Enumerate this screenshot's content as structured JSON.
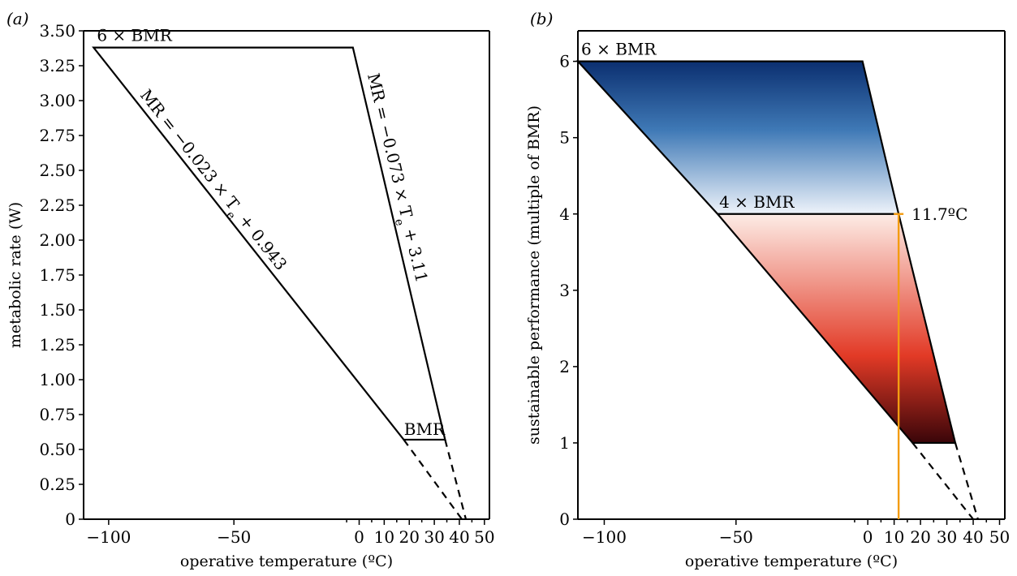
{
  "chart_data": [
    {
      "panel_label": "(a)",
      "type": "line",
      "xlabel": "operative temperature (ºC)",
      "ylabel": "metabolic rate (W)",
      "xlim": [
        -110,
        52
      ],
      "ylim": [
        0,
        3.5
      ],
      "xticks": [
        -100,
        -50,
        0,
        10,
        20,
        30,
        40,
        50
      ],
      "xtick_labels": [
        "−100",
        "−50",
        "0",
        "10",
        "20",
        "30",
        "40",
        "50"
      ],
      "xminor": [
        -5,
        5,
        15,
        25,
        35,
        45
      ],
      "yticks": [
        0,
        0.25,
        0.5,
        0.75,
        1.0,
        1.25,
        1.5,
        1.75,
        2.0,
        2.25,
        2.5,
        2.75,
        3.0,
        3.25,
        3.5
      ],
      "ytick_labels": [
        "0",
        "0.25",
        "0.50",
        "0.75",
        "1.00",
        "1.25",
        "1.50",
        "1.75",
        "2.00",
        "2.25",
        "2.50",
        "2.75",
        "3.00",
        "3.25",
        "3.50"
      ],
      "polygon": [
        {
          "x": -106,
          "y": 3.38
        },
        {
          "x": -2.5,
          "y": 3.38
        },
        {
          "x": 34.3,
          "y": 0.57
        },
        {
          "x": 17.8,
          "y": 0.57
        }
      ],
      "dashed_lines": [
        {
          "x1": 17.8,
          "y1": 0.57,
          "x2": 41,
          "y2": 0
        },
        {
          "x1": 34.3,
          "y1": 0.57,
          "x2": 42.6,
          "y2": 0
        }
      ],
      "annotations": {
        "upper_label": "6 × BMR",
        "lower_label": "BMR",
        "eq_left": "MR = −0.023 × T",
        "eq_left_sub": "e",
        "eq_left_tail": " + 0.943",
        "eq_right": "MR = −0.073 × T",
        "eq_right_sub": "e",
        "eq_right_tail": " + 3.11"
      }
    },
    {
      "panel_label": "(b)",
      "type": "area",
      "xlabel": "operative temperature (ºC)",
      "ylabel": "sustainable performance (multiple of BMR)",
      "xlim": [
        -110,
        52
      ],
      "ylim": [
        0,
        6.4
      ],
      "xticks": [
        -100,
        -50,
        0,
        10,
        20,
        30,
        40,
        50
      ],
      "xtick_labels": [
        "−100",
        "−50",
        "0",
        "10",
        "20",
        "30",
        "40",
        "50"
      ],
      "xminor": [
        -5,
        5,
        15,
        25,
        35,
        45
      ],
      "yticks": [
        0,
        1,
        2,
        3,
        4,
        5,
        6
      ],
      "ytick_labels": [
        "0",
        "1",
        "2",
        "3",
        "4",
        "5",
        "6"
      ],
      "polygon": [
        {
          "x": -110,
          "y": 6
        },
        {
          "x": -2,
          "y": 6
        },
        {
          "x": 11.7,
          "y": 4
        },
        {
          "x": 33.2,
          "y": 1
        },
        {
          "x": 17,
          "y": 1
        },
        {
          "x": -57,
          "y": 4
        }
      ],
      "threshold_line": {
        "y": 4,
        "x_from": -57,
        "x_to": 11.7
      },
      "vertical_marker": {
        "x": 11.7,
        "y_from": 0,
        "y_to": 4,
        "color": "#f39c12"
      },
      "dashed_lines": [
        {
          "x1": 17,
          "y1": 1,
          "x2": 40,
          "y2": 0
        },
        {
          "x1": 33.2,
          "y1": 1,
          "x2": 41.8,
          "y2": 0
        }
      ],
      "fill_colors": {
        "top_dark": "#0b2f70",
        "top_mid": "#3f79b6",
        "top_light": "#eef3fa",
        "bottom_light": "#fdece6",
        "bottom_mid": "#e23a26",
        "bottom_dark": "#3a0509"
      },
      "annotations": {
        "upper_label": "6 × BMR",
        "mid_label": "4 × BMR",
        "marker_label": "11.7ºC"
      }
    }
  ]
}
